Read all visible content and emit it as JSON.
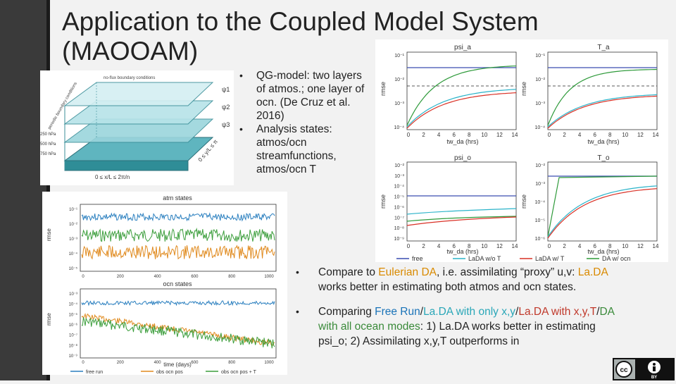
{
  "slide": {
    "title": "Application to the Coupled Model System (MAOOAM)",
    "bullets_top": [
      "QG-model: two layers of atmos.; one layer of ocn. (De Cruz et al. 2016)",
      "Analysis states: atmos/ocn streamfunctions, atmos/ocn T"
    ],
    "bullet_bottom_1": {
      "a": "Compare to ",
      "b": "Eulerian DA",
      "c": ", i.e. assimilating “proxy” u,v: ",
      "d": "La.DA",
      "e": " works better in estimating both atmos and ocn states."
    },
    "bullet_bottom_2": {
      "a": "Comparing ",
      "b": "Free Run",
      "c": "/",
      "d": "La.DA with only x,y",
      "e": "/",
      "f": "La.DA with x,y,T",
      "g": "/",
      "h": "DA with all ocean modes",
      "i": ": 1) La.DA works better in estimating psi_o; 2) Assimilating x,y,T outperforms in"
    },
    "bullet_glyph": "•"
  },
  "diagram": {
    "boundary_top": "no-flux boundary conditions",
    "boundary_side": "periodic boundary conditions",
    "levels": [
      "250 hPa",
      "500 hPa",
      "750 hPa"
    ],
    "depth_labels": [
      "0 ≤ x/L ≤ 2π/n",
      "0 ≤ y/L ≤ π"
    ],
    "sym": [
      "ψ1",
      "ψ2",
      "ψ3"
    ]
  },
  "states_fig": {
    "atm_title": "atm states",
    "ocn_title": "ocn states",
    "ylabel": "rmse",
    "xlabel": "time (days)",
    "x_ticks": [
      "0",
      "200",
      "400",
      "600",
      "800",
      "1000"
    ],
    "atm_y_ticks": [
      "10⁻¹",
      "10⁻²",
      "10⁻³",
      "10⁻⁴",
      "10⁻⁵"
    ],
    "ocn_y_ticks": [
      "10⁻³",
      "10⁻⁴",
      "10⁻⁵",
      "10⁻⁶",
      "10⁻⁷",
      "10⁻⁸",
      "10⁻⁹"
    ],
    "legend": [
      "free run",
      "obs ocn pos",
      "obs ocn pos + T"
    ]
  },
  "panels_fig": {
    "titles": [
      "psi_a",
      "T_a",
      "psi_o",
      "T_o"
    ],
    "ylabel": "rmse",
    "xlabel": "tw_da (hrs)",
    "x_ticks": [
      "0",
      "2",
      "4",
      "6",
      "8",
      "10",
      "12",
      "14"
    ],
    "psi_a_y": [
      "10⁻¹",
      "10⁻²",
      "10⁻³",
      "10⁻⁴"
    ],
    "T_a_y": [
      "10⁻¹",
      "10⁻²",
      "10⁻³",
      "10⁻⁴"
    ],
    "psi_o_y": [
      "10⁻²",
      "10⁻³",
      "10⁻⁴",
      "10⁻⁵",
      "10⁻⁶",
      "10⁻⁷",
      "10⁻⁸",
      "10⁻⁹"
    ],
    "T_o_y": [
      "10⁻²",
      "10⁻³",
      "10⁻⁴",
      "10⁻⁵",
      "10⁻⁶"
    ],
    "legend": [
      "free",
      "LaDA w/o T",
      "LaDA w/ T",
      "DA w/ ocn"
    ]
  },
  "license": {
    "cc": "cc",
    "by": "BY"
  },
  "colors": {
    "free": "#3a4db0",
    "lada_wo_t": "#2ab3c9",
    "lada_w_t": "#d93025",
    "da_ocn": "#2e9a3a",
    "atm_blue": "#2a7fbf",
    "atm_orange": "#e08a1e",
    "atm_green": "#3c9e3c"
  }
}
